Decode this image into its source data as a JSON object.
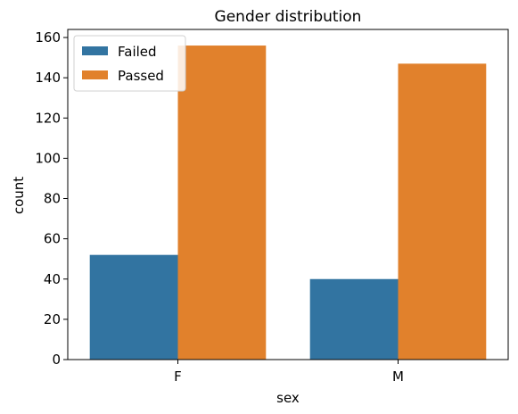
{
  "chart_data": {
    "type": "bar",
    "title": "Gender distribution",
    "xlabel": "sex",
    "ylabel": "count",
    "categories": [
      "F",
      "M"
    ],
    "series": [
      {
        "name": "Failed",
        "values": [
          52,
          40
        ],
        "color": "#3274a1"
      },
      {
        "name": "Passed",
        "values": [
          156,
          147
        ],
        "color": "#e1812c"
      }
    ],
    "ylim": [
      0,
      164
    ],
    "yticks": [
      0,
      20,
      40,
      60,
      80,
      100,
      120,
      140,
      160
    ],
    "grid": false,
    "legend_position": "top-left"
  }
}
